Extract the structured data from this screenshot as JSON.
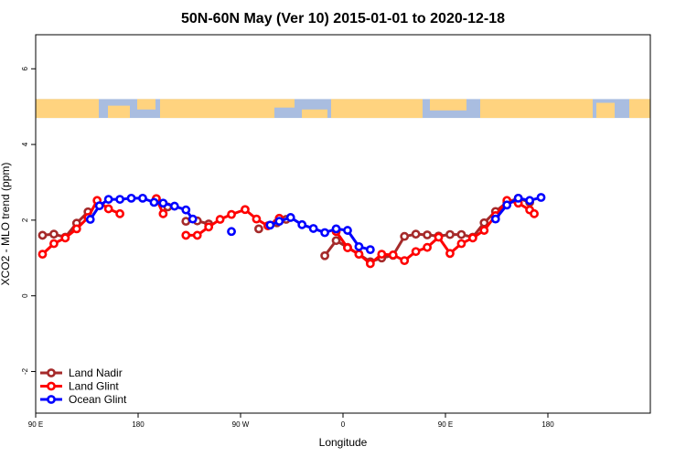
{
  "chart_data": {
    "type": "line",
    "title": "50N-60N May (Ver 10)   2015-01-01 to 2020-12-18",
    "xlabel": "Longitude",
    "ylabel": "XCO2 - MLO trend (ppm)",
    "xlim": [
      -90,
      180
    ],
    "ylim": [
      -3.1,
      6.9
    ],
    "x_ticks": [
      {
        "value": -90,
        "label": "90 E"
      },
      {
        "value": -45,
        "label": "180"
      },
      {
        "value": 0,
        "label": "90 W"
      },
      {
        "value": 45,
        "label": "0"
      },
      {
        "value": 90,
        "label": "90 E"
      },
      {
        "value": 135,
        "label": "180"
      }
    ],
    "y_ticks": [
      -2,
      0,
      2,
      4,
      6
    ],
    "legend_position": "bottom-left",
    "map_band": {
      "ymin": 4.7,
      "ymax": 5.2,
      "ocean_color": "#a9bde0",
      "land_color": "#ffd37f"
    },
    "series": [
      {
        "name": "Land Nadir",
        "color": "#a52a2a",
        "points": [
          [
            -87,
            1.6
          ],
          [
            -82,
            1.63
          ],
          [
            -77,
            1.55
          ],
          [
            -72,
            1.92
          ],
          [
            -67,
            2.22
          ],
          [
            -37,
            2.55
          ],
          [
            -32,
            2.35
          ],
          [
            -24,
            1.97
          ],
          [
            -19,
            1.98
          ],
          [
            -14,
            1.9
          ],
          [
            8,
            1.77
          ],
          [
            16,
            1.93
          ],
          [
            20,
            2.02
          ],
          [
            37,
            1.06
          ],
          [
            42,
            1.46
          ],
          [
            47,
            1.28
          ],
          [
            52,
            1.1
          ],
          [
            57,
            0.9
          ],
          [
            62,
            1.0
          ],
          [
            67,
            1.07
          ],
          [
            72,
            1.57
          ],
          [
            77,
            1.63
          ],
          [
            82,
            1.61
          ],
          [
            87,
            1.58
          ],
          [
            92,
            1.62
          ],
          [
            97,
            1.62
          ],
          [
            102,
            1.55
          ],
          [
            107,
            1.93
          ],
          [
            112,
            2.23
          ],
          [
            117,
            2.47
          ],
          [
            122,
            2.58
          ],
          [
            127,
            2.47
          ]
        ]
      },
      {
        "name": "Land Glint",
        "color": "#ff0000",
        "points": [
          [
            -87,
            1.1
          ],
          [
            -82,
            1.38
          ],
          [
            -77,
            1.53
          ],
          [
            -72,
            1.77
          ],
          [
            -67,
            2.07
          ],
          [
            -63,
            2.52
          ],
          [
            -58,
            2.3
          ],
          [
            -53,
            2.17
          ],
          [
            -37,
            2.57
          ],
          [
            -34,
            2.17
          ],
          [
            -24,
            1.6
          ],
          [
            -19,
            1.6
          ],
          [
            -14,
            1.82
          ],
          [
            -9,
            2.02
          ],
          [
            -4,
            2.15
          ],
          [
            2,
            2.28
          ],
          [
            7,
            2.03
          ],
          [
            12,
            1.85
          ],
          [
            17,
            2.05
          ],
          [
            42,
            1.7
          ],
          [
            47,
            1.27
          ],
          [
            52,
            1.1
          ],
          [
            57,
            0.85
          ],
          [
            62,
            1.1
          ],
          [
            67,
            1.08
          ],
          [
            72,
            0.93
          ],
          [
            77,
            1.17
          ],
          [
            82,
            1.28
          ],
          [
            87,
            1.55
          ],
          [
            92,
            1.12
          ],
          [
            97,
            1.38
          ],
          [
            102,
            1.53
          ],
          [
            107,
            1.73
          ],
          [
            112,
            2.12
          ],
          [
            117,
            2.52
          ],
          [
            122,
            2.45
          ],
          [
            127,
            2.27
          ],
          [
            129,
            2.17
          ]
        ]
      },
      {
        "name": "Ocean Glint",
        "color": "#0000ff",
        "points": [
          [
            -66,
            2.02
          ],
          [
            -62,
            2.38
          ],
          [
            -58,
            2.55
          ],
          [
            -53,
            2.55
          ],
          [
            -48,
            2.58
          ],
          [
            -43,
            2.58
          ],
          [
            -38,
            2.47
          ],
          [
            -34,
            2.45
          ],
          [
            -29,
            2.37
          ],
          [
            -24,
            2.27
          ],
          [
            -21,
            2.03
          ],
          [
            -4,
            1.7
          ],
          [
            13,
            1.87
          ],
          [
            17,
            1.97
          ],
          [
            22,
            2.07
          ],
          [
            27,
            1.88
          ],
          [
            32,
            1.78
          ],
          [
            37,
            1.67
          ],
          [
            42,
            1.77
          ],
          [
            47,
            1.73
          ],
          [
            52,
            1.3
          ],
          [
            57,
            1.22
          ],
          [
            112,
            2.03
          ],
          [
            117,
            2.4
          ],
          [
            122,
            2.58
          ],
          [
            127,
            2.52
          ],
          [
            132,
            2.6
          ]
        ]
      }
    ]
  }
}
